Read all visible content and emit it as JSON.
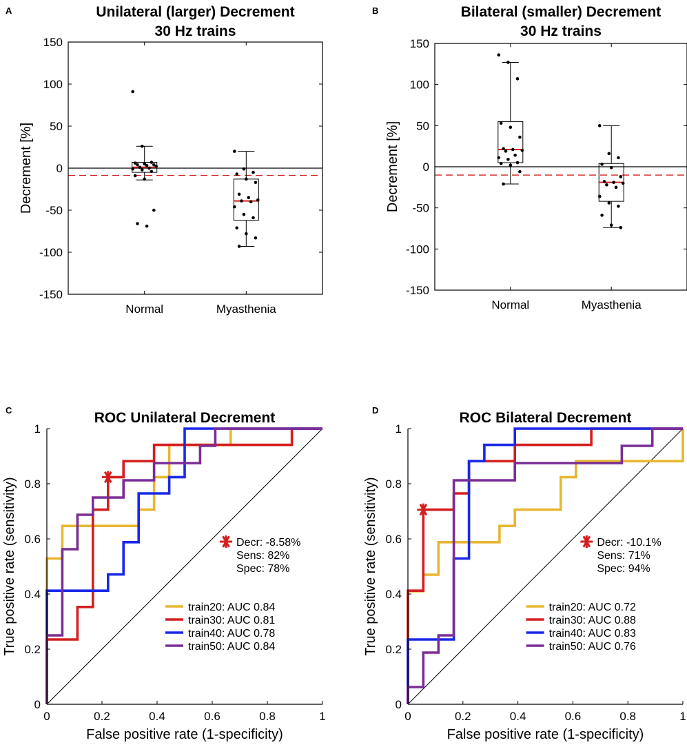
{
  "chart_data": [
    {
      "panel": "A",
      "type": "box",
      "title_lines": [
        "Unilateral (larger) Decrement",
        "30 Hz trains"
      ],
      "ylabel": "Decrement [%]",
      "ylim": [
        -150,
        150
      ],
      "yticks": [
        "150",
        "100",
        "50",
        "0",
        "-50",
        "-100",
        "-150"
      ],
      "ytick_values": [
        150,
        100,
        50,
        0,
        -50,
        -100,
        -150
      ],
      "categories": [
        "Normal",
        "Myasthenia"
      ],
      "zero_line": 0,
      "threshold_line": -8.58,
      "boxes": [
        {
          "q1": -5,
          "median": 1,
          "q3": 7,
          "whisker_low": -14,
          "whisker_high": 26,
          "points": [
            91,
            26,
            7,
            6,
            5,
            4,
            4,
            3,
            2,
            1,
            0,
            -1,
            -2,
            -4,
            -9,
            -13,
            -50,
            -66,
            -69
          ]
        },
        {
          "q1": -62,
          "median": -39,
          "q3": -13,
          "whisker_low": -93,
          "whisker_high": 20,
          "points": [
            20,
            -1,
            -5,
            -7,
            -13,
            -17,
            -31,
            -35,
            -38,
            -39,
            -40,
            -46,
            -55,
            -59,
            -71,
            -78,
            -83,
            -93
          ]
        }
      ]
    },
    {
      "panel": "B",
      "type": "box",
      "title_lines": [
        "Bilateral (smaller) Decrement",
        "30 Hz trains"
      ],
      "ylabel": "Decrement [%]",
      "ylim": [
        -150,
        150
      ],
      "yticks": [
        "150",
        "100",
        "50",
        "0",
        "-50",
        "-100",
        "-150"
      ],
      "ytick_values": [
        150,
        100,
        50,
        0,
        -50,
        -100,
        -150
      ],
      "categories": [
        "Normal",
        "Myasthenia"
      ],
      "zero_line": 0,
      "threshold_line": -10.1,
      "boxes": [
        {
          "q1": 5,
          "median": 21,
          "q3": 55,
          "whisker_low": -21,
          "whisker_high": 127,
          "points": [
            136,
            127,
            107,
            53,
            48,
            36,
            22,
            21,
            20,
            19,
            14,
            11,
            9,
            5,
            4,
            2,
            -6,
            -21
          ]
        },
        {
          "q1": -42,
          "median": -19,
          "q3": 4,
          "whisker_low": -74,
          "whisker_high": 50,
          "points": [
            50,
            16,
            11,
            3,
            -1,
            -12,
            -18,
            -19,
            -20,
            -22,
            -25,
            -36,
            -44,
            -48,
            -59,
            -71,
            -74
          ]
        }
      ]
    },
    {
      "panel": "C",
      "type": "roc",
      "title": "ROC Unilateral Decrement",
      "xlabel": "False positive rate (1-specificity)",
      "ylabel": "True positive rate (sensitivity)",
      "xlim": [
        0,
        1
      ],
      "ylim": [
        0,
        1
      ],
      "xticks": [
        "0",
        "0.2",
        "0.4",
        "0.6",
        "0.8",
        "1"
      ],
      "yticks": [
        "0",
        "0.2",
        "0.4",
        "0.6",
        "0.8",
        "1"
      ],
      "tick_values": [
        0,
        0.2,
        0.4,
        0.6,
        0.8,
        1
      ],
      "optimal_point": {
        "x": 0.222,
        "y": 0.824
      },
      "annotation": [
        "Decr: -8.58%",
        "Sens: 82%",
        "Spec: 78%"
      ],
      "series": [
        {
          "name": "train20: AUC 0.84",
          "color": "#E8B630",
          "points": [
            [
              0,
              0
            ],
            [
              0,
              0.529
            ],
            [
              0.056,
              0.529
            ],
            [
              0.056,
              0.647
            ],
            [
              0.333,
              0.647
            ],
            [
              0.333,
              0.706
            ],
            [
              0.389,
              0.706
            ],
            [
              0.389,
              0.824
            ],
            [
              0.444,
              0.824
            ],
            [
              0.444,
              0.882
            ],
            [
              0.444,
              0.941
            ],
            [
              0.667,
              0.941
            ],
            [
              0.667,
              1
            ],
            [
              1,
              1
            ]
          ]
        },
        {
          "name": "train30: AUC 0.81",
          "color": "#D41F1F",
          "points": [
            [
              0,
              0
            ],
            [
              0,
              0.235
            ],
            [
              0.111,
              0.235
            ],
            [
              0.111,
              0.353
            ],
            [
              0.167,
              0.353
            ],
            [
              0.167,
              0.706
            ],
            [
              0.222,
              0.706
            ],
            [
              0.222,
              0.824
            ],
            [
              0.278,
              0.824
            ],
            [
              0.278,
              0.882
            ],
            [
              0.389,
              0.882
            ],
            [
              0.389,
              0.941
            ],
            [
              0.889,
              0.941
            ],
            [
              0.889,
              1
            ],
            [
              1,
              1
            ]
          ]
        },
        {
          "name": "train40: AUC 0.78",
          "color": "#1A28E8",
          "points": [
            [
              0,
              0
            ],
            [
              0,
              0.412
            ],
            [
              0.222,
              0.412
            ],
            [
              0.222,
              0.471
            ],
            [
              0.278,
              0.471
            ],
            [
              0.278,
              0.588
            ],
            [
              0.333,
              0.588
            ],
            [
              0.333,
              0.765
            ],
            [
              0.444,
              0.765
            ],
            [
              0.444,
              0.824
            ],
            [
              0.5,
              0.824
            ],
            [
              0.5,
              1
            ],
            [
              1,
              1
            ]
          ]
        },
        {
          "name": "train50: AUC 0.84",
          "color": "#7B2D96",
          "points": [
            [
              0,
              0
            ],
            [
              0,
              0.25
            ],
            [
              0.056,
              0.25
            ],
            [
              0.056,
              0.5625
            ],
            [
              0.111,
              0.5625
            ],
            [
              0.111,
              0.6875
            ],
            [
              0.167,
              0.6875
            ],
            [
              0.167,
              0.75
            ],
            [
              0.278,
              0.75
            ],
            [
              0.278,
              0.8125
            ],
            [
              0.389,
              0.8125
            ],
            [
              0.389,
              0.875
            ],
            [
              0.556,
              0.875
            ],
            [
              0.556,
              0.9375
            ],
            [
              0.611,
              0.9375
            ],
            [
              0.611,
              1
            ],
            [
              1,
              1
            ]
          ]
        }
      ]
    },
    {
      "panel": "D",
      "type": "roc",
      "title": "ROC Bilateral Decrement",
      "xlabel": "False positive rate (1-specificity)",
      "ylabel": "True positive rate (sensitivity)",
      "xlim": [
        0,
        1
      ],
      "ylim": [
        0,
        1
      ],
      "xticks": [
        "0",
        "0.2",
        "0.4",
        "0.6",
        "0.8",
        "1"
      ],
      "yticks": [
        "0",
        "0.2",
        "0.4",
        "0.6",
        "0.8",
        "1"
      ],
      "tick_values": [
        0,
        0.2,
        0.4,
        0.6,
        0.8,
        1
      ],
      "optimal_point": {
        "x": 0.056,
        "y": 0.706
      },
      "annotation": [
        "Decr: -10.1%",
        "Sens: 71%",
        "Spec: 94%"
      ],
      "series": [
        {
          "name": "train20: AUC 0.72",
          "color": "#E8B630",
          "points": [
            [
              0,
              0
            ],
            [
              0,
              0.41
            ],
            [
              0.056,
              0.41
            ],
            [
              0.056,
              0.47
            ],
            [
              0.111,
              0.47
            ],
            [
              0.111,
              0.588
            ],
            [
              0.333,
              0.588
            ],
            [
              0.333,
              0.647
            ],
            [
              0.389,
              0.647
            ],
            [
              0.389,
              0.706
            ],
            [
              0.556,
              0.706
            ],
            [
              0.556,
              0.824
            ],
            [
              0.611,
              0.824
            ],
            [
              0.611,
              0.882
            ],
            [
              1,
              0.882
            ],
            [
              1,
              1
            ]
          ]
        },
        {
          "name": "train30: AUC 0.88",
          "color": "#D41F1F",
          "points": [
            [
              0,
              0
            ],
            [
              0,
              0.412
            ],
            [
              0.056,
              0.412
            ],
            [
              0.056,
              0.706
            ],
            [
              0.167,
              0.706
            ],
            [
              0.167,
              0.765
            ],
            [
              0.222,
              0.765
            ],
            [
              0.222,
              0.882
            ],
            [
              0.389,
              0.882
            ],
            [
              0.389,
              0.941
            ],
            [
              0.667,
              0.941
            ],
            [
              0.667,
              1
            ],
            [
              1,
              1
            ]
          ]
        },
        {
          "name": "train40: AUC 0.83",
          "color": "#1A28E8",
          "points": [
            [
              0,
              0
            ],
            [
              0,
              0.235
            ],
            [
              0.167,
              0.235
            ],
            [
              0.167,
              0.529
            ],
            [
              0.222,
              0.529
            ],
            [
              0.222,
              0.882
            ],
            [
              0.278,
              0.882
            ],
            [
              0.278,
              0.941
            ],
            [
              0.389,
              0.941
            ],
            [
              0.389,
              1
            ],
            [
              1,
              1
            ]
          ]
        },
        {
          "name": "train50: AUC 0.76",
          "color": "#7B2D96",
          "points": [
            [
              0,
              0
            ],
            [
              0,
              0.0625
            ],
            [
              0.056,
              0.0625
            ],
            [
              0.056,
              0.1875
            ],
            [
              0.111,
              0.1875
            ],
            [
              0.111,
              0.25
            ],
            [
              0.167,
              0.25
            ],
            [
              0.167,
              0.8125
            ],
            [
              0.389,
              0.8125
            ],
            [
              0.389,
              0.875
            ],
            [
              0.778,
              0.875
            ],
            [
              0.778,
              0.9375
            ],
            [
              0.889,
              0.9375
            ],
            [
              0.889,
              1
            ],
            [
              1,
              1
            ]
          ]
        }
      ]
    }
  ]
}
